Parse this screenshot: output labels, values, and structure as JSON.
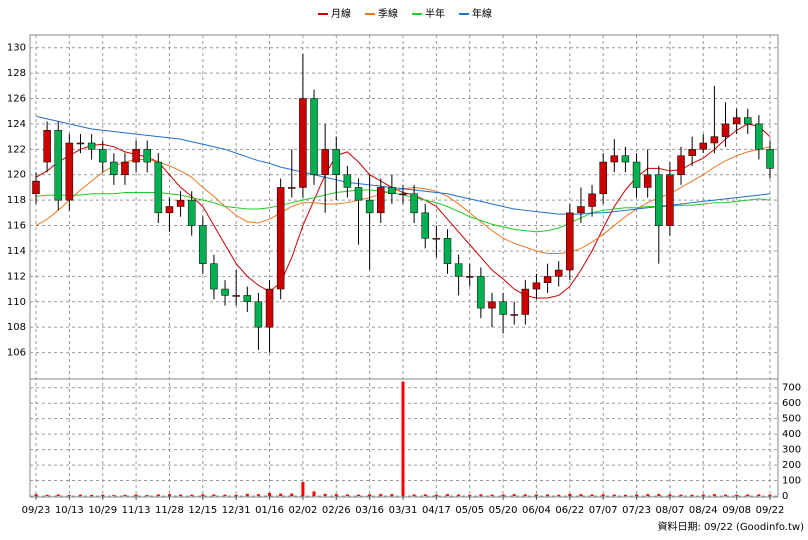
{
  "chart_data": {
    "type": "candlestick",
    "footer": "資料日期: 09/22 (Goodinfo.tw)",
    "categories": [
      "09/23",
      null,
      null,
      "10/13",
      null,
      null,
      "10/29",
      null,
      null,
      "11/13",
      null,
      null,
      "11/28",
      null,
      null,
      "12/15",
      null,
      null,
      "12/31",
      null,
      null,
      "01/16",
      null,
      null,
      "02/02",
      null,
      null,
      "02/26",
      null,
      null,
      "03/16",
      null,
      null,
      "03/31",
      null,
      null,
      "04/17",
      null,
      null,
      "05/05",
      null,
      null,
      "05/20",
      null,
      null,
      "06/04",
      null,
      null,
      "06/22",
      null,
      null,
      "07/07",
      null,
      null,
      "07/23",
      null,
      null,
      "08/07",
      null,
      null,
      "08/24",
      null,
      null,
      "09/08",
      null,
      null,
      "09/22"
    ],
    "open": [
      118.5,
      121,
      123.5,
      118,
      122.5,
      122.5,
      122,
      121,
      120,
      121,
      122,
      121,
      117,
      117.5,
      118,
      116,
      113,
      111,
      110.5,
      110.5,
      110,
      108,
      111,
      119,
      119,
      126,
      120,
      122,
      120,
      119,
      118,
      117,
      119,
      118.5,
      118.5,
      117,
      115,
      115,
      113,
      112,
      112,
      109.5,
      110,
      109,
      109,
      111,
      111.5,
      112,
      112.5,
      117,
      117.5,
      118.5,
      121,
      121.5,
      121,
      119,
      120,
      116,
      120,
      121.5,
      122,
      122.5,
      123,
      124,
      124.5,
      124,
      122
    ],
    "high": [
      120.2,
      124.2,
      124.2,
      123.2,
      123.2,
      123.2,
      122.7,
      121.7,
      121.7,
      122.7,
      122.7,
      121.7,
      118.2,
      118.7,
      118.7,
      116.7,
      113.7,
      111.7,
      112.5,
      111.2,
      110.7,
      111.7,
      119.7,
      122,
      129.5,
      126.7,
      124,
      123,
      120.7,
      119.7,
      120,
      119.7,
      120,
      119.2,
      119.2,
      117.7,
      116,
      115.7,
      113.7,
      113,
      112.7,
      110.7,
      110.7,
      110,
      111.7,
      112.2,
      113,
      113.2,
      117.7,
      119,
      119.2,
      121.7,
      122.8,
      122.2,
      121.7,
      122,
      120.7,
      121,
      122.2,
      123,
      123.2,
      127,
      125.7,
      125.2,
      125.2,
      124.7,
      122.7
    ],
    "low": [
      117.7,
      120.2,
      117.2,
      117.2,
      121.7,
      121.2,
      120.2,
      119.2,
      119.2,
      120.2,
      120.2,
      116.2,
      115.5,
      116.7,
      115.2,
      112.2,
      110.2,
      109.7,
      109.7,
      109.2,
      106.2,
      106,
      110.2,
      118.2,
      118.2,
      119.2,
      117,
      118,
      118.2,
      114.5,
      112.5,
      116.2,
      117.7,
      117.7,
      116.2,
      114.2,
      113.5,
      112.2,
      110.5,
      111.2,
      108.7,
      108,
      107.5,
      108.2,
      108.2,
      110.2,
      110.7,
      111.2,
      111.7,
      116.2,
      116.7,
      117.7,
      120.2,
      120.2,
      118.2,
      118.2,
      113,
      115.2,
      119.2,
      120.7,
      121.7,
      121.7,
      122.2,
      123.2,
      123.2,
      121.2,
      119.7
    ],
    "close": [
      119.5,
      123.5,
      118,
      122.5,
      122.5,
      122,
      121,
      120,
      121,
      122,
      121,
      117,
      117.5,
      118,
      116,
      113,
      111,
      110.5,
      110.5,
      110,
      108,
      111,
      119,
      119,
      126,
      120,
      122,
      120,
      119,
      118,
      117,
      119,
      118.5,
      118.5,
      117,
      115,
      115,
      113,
      112,
      112,
      109.5,
      110,
      109,
      109,
      111,
      111.5,
      112,
      112.5,
      117,
      117.5,
      118.5,
      121,
      121.5,
      121,
      119,
      120,
      116,
      120,
      121.5,
      122,
      122.5,
      123,
      124,
      124.5,
      124,
      122,
      120.5
    ],
    "up_color": "#cc0000",
    "down_color": "#00b050",
    "volume": [
      12,
      8,
      10,
      6,
      9,
      7,
      8,
      6,
      7,
      9,
      6,
      10,
      12,
      9,
      8,
      11,
      10,
      9,
      8,
      14,
      12,
      20,
      15,
      16,
      90,
      30,
      14,
      12,
      10,
      9,
      11,
      13,
      12,
      740,
      10,
      11,
      9,
      12,
      10,
      8,
      11,
      9,
      10,
      12,
      11,
      9,
      10,
      8,
      14,
      12,
      10,
      11,
      9,
      8,
      10,
      12,
      14,
      11,
      9,
      8,
      10,
      12,
      9,
      8,
      10,
      11,
      9
    ],
    "volume_color": "#ff0000",
    "series": [
      {
        "name": "月線",
        "color": "#cc0000",
        "values": [
          119.8,
          120.3,
          121,
          121.5,
          122,
          122.3,
          122.4,
          122.2,
          121.8,
          121.6,
          121.4,
          121,
          120,
          119,
          118.3,
          117.5,
          116,
          114.5,
          113,
          112,
          111.3,
          110.8,
          111.5,
          113.5,
          116,
          118,
          120,
          121.5,
          121.8,
          121,
          120,
          119.5,
          119,
          118.6,
          118.4,
          118,
          117.5,
          116.5,
          115.5,
          114.5,
          113.5,
          112.5,
          111.8,
          111,
          110.5,
          110.3,
          110.3,
          110.5,
          111.2,
          112.5,
          114,
          115.8,
          117.5,
          118.8,
          119.8,
          120.5,
          120.5,
          120.3,
          120.4,
          120.9,
          121.3,
          122,
          122.8,
          123.5,
          124,
          123.8,
          123
        ]
      },
      {
        "name": "季線",
        "color": "#ee7722",
        "values": [
          116,
          116.5,
          117.2,
          118,
          118.8,
          119.5,
          120.2,
          120.7,
          121,
          121.2,
          121.2,
          121,
          120.7,
          120.3,
          119.8,
          119,
          118.3,
          117.5,
          116.8,
          116.3,
          116.2,
          116.5,
          117,
          117.5,
          117.8,
          117.8,
          117.7,
          117.7,
          117.8,
          118,
          118.2,
          118.5,
          118.7,
          118.9,
          119,
          118.9,
          118.7,
          118.3,
          117.7,
          117,
          116.3,
          115.6,
          115,
          114.6,
          114.3,
          114,
          113.8,
          113.8,
          113.9,
          114.2,
          114.7,
          115.3,
          116,
          116.7,
          117.3,
          117.8,
          118.2,
          118.5,
          119,
          119.5,
          120,
          120.6,
          121.1,
          121.5,
          121.8,
          122,
          122.2
        ]
      },
      {
        "name": "半年",
        "color": "#22cc22",
        "values": [
          118.3,
          118.4,
          118.4,
          118.4,
          118.4,
          118.5,
          118.5,
          118.5,
          118.6,
          118.6,
          118.6,
          118.6,
          118.5,
          118.4,
          118.2,
          118,
          117.8,
          117.5,
          117.4,
          117.3,
          117.3,
          117.4,
          117.6,
          117.8,
          118,
          118.2,
          118.4,
          118.6,
          118.7,
          118.8,
          118.8,
          118.7,
          118.6,
          118.4,
          118.2,
          118,
          117.8,
          117.5,
          117.1,
          116.7,
          116.4,
          116.1,
          115.9,
          115.7,
          115.6,
          115.5,
          115.6,
          115.8,
          116.2,
          116.6,
          117,
          117.2,
          117.3,
          117.4,
          117.4,
          117.5,
          117.5,
          117.5,
          117.6,
          117.6,
          117.7,
          117.8,
          117.8,
          117.9,
          118,
          118.1,
          118
        ]
      },
      {
        "name": "年線",
        "color": "#1f6fd0",
        "values": [
          124.6,
          124.4,
          124.2,
          124,
          123.8,
          123.6,
          123.5,
          123.4,
          123.3,
          123.2,
          123.1,
          123,
          122.9,
          122.8,
          122.6,
          122.4,
          122.2,
          122,
          121.7,
          121.4,
          121.1,
          120.9,
          120.6,
          120.4,
          120.2,
          120,
          119.8,
          119.6,
          119.4,
          119.3,
          119.2,
          119.1,
          119,
          118.9,
          118.8,
          118.7,
          118.6,
          118.5,
          118.3,
          118.1,
          117.9,
          117.7,
          117.5,
          117.3,
          117.2,
          117.1,
          117,
          116.9,
          116.9,
          116.9,
          117,
          117,
          117.1,
          117.2,
          117.3,
          117.4,
          117.5,
          117.6,
          117.7,
          117.8,
          117.9,
          118,
          118.1,
          118.2,
          118.3,
          118.4,
          118.5
        ]
      }
    ],
    "ylim": [
      104,
      131
    ],
    "yticks": [
      106,
      108,
      110,
      112,
      114,
      116,
      118,
      120,
      122,
      124,
      126,
      128,
      130
    ],
    "y2lim": [
      0,
      750
    ],
    "y2ticks": [
      0,
      100,
      200,
      300,
      400,
      500,
      600,
      700
    ],
    "grid": true
  }
}
